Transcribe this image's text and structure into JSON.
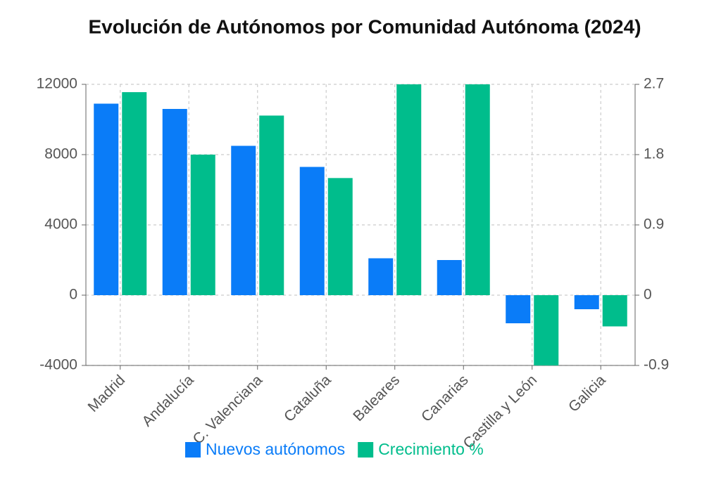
{
  "chart_data": {
    "type": "bar",
    "title": "Evolución de Autónomos por Comunidad Autónoma (2024)",
    "categories": [
      "Madrid",
      "Andalucía",
      "C. Valenciana",
      "Cataluña",
      "Baleares",
      "Canarias",
      "Castilla y León",
      "Galicia"
    ],
    "series": [
      {
        "name": "Nuevos autónomos",
        "color": "#0a7cf8",
        "values": [
          10900,
          10600,
          8500,
          7300,
          2100,
          2000,
          -1600,
          -800
        ]
      },
      {
        "name": "Crecimiento %",
        "color": "#00bd8c",
        "axis": "y2",
        "values": [
          2.6,
          1.8,
          2.3,
          1.5,
          2.7,
          2.7,
          -0.9,
          -0.4
        ]
      }
    ],
    "ylim": [
      -4000,
      12000
    ],
    "yticks": [
      -4000,
      0,
      4000,
      8000,
      12000
    ],
    "y2lim": [
      -0.9,
      2.7
    ],
    "y2ticks": [
      -0.9,
      0,
      0.9,
      1.8,
      2.7
    ],
    "grid": true,
    "legend": "bottom"
  }
}
